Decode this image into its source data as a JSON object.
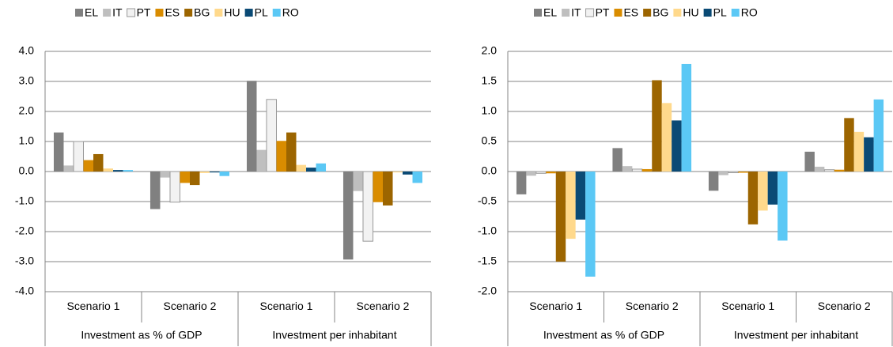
{
  "chart_data": [
    {
      "type": "bar",
      "categories": [
        "Scenario 1",
        "Scenario 2",
        "Scenario 1",
        "Scenario 2"
      ],
      "groups": [
        "Investment as % of GDP",
        "Investment per inhabitant"
      ],
      "ylim": [
        -4,
        4
      ],
      "yticks": [
        {
          "value": -4,
          "label": "-4.0"
        },
        {
          "value": -3,
          "label": "-3.0"
        },
        {
          "value": -2,
          "label": "-2.0"
        },
        {
          "value": -1,
          "label": "-1.0"
        },
        {
          "value": 0,
          "label": "0.0"
        },
        {
          "value": 1,
          "label": "1.0"
        },
        {
          "value": 2,
          "label": "2.0"
        },
        {
          "value": 3,
          "label": "3.0"
        },
        {
          "value": 4,
          "label": "4.0"
        }
      ],
      "grid": true,
      "legend": "top",
      "series": [
        {
          "name": "EL",
          "color": "#808080",
          "values": [
            1.3,
            -1.25,
            3.02,
            -2.93
          ]
        },
        {
          "name": "IT",
          "color": "#bfbfbf",
          "values": [
            0.2,
            -0.2,
            0.72,
            -0.65
          ]
        },
        {
          "name": "PT",
          "color": "#f2f2f2",
          "values": [
            1.0,
            -1.02,
            2.4,
            -2.32
          ]
        },
        {
          "name": "ES",
          "color": "#d98c00",
          "values": [
            0.38,
            -0.38,
            1.02,
            -1.02
          ]
        },
        {
          "name": "BG",
          "color": "#9c6500",
          "values": [
            0.58,
            -0.45,
            1.3,
            -1.13
          ]
        },
        {
          "name": "HU",
          "color": "#ffd98c",
          "values": [
            0.1,
            -0.05,
            0.22,
            -0.03
          ]
        },
        {
          "name": "PL",
          "color": "#0a4a75",
          "values": [
            0.05,
            -0.03,
            0.13,
            -0.1
          ]
        },
        {
          "name": "RO",
          "color": "#5bc8f5",
          "values": [
            0.05,
            -0.15,
            0.27,
            -0.38
          ]
        }
      ]
    },
    {
      "type": "bar",
      "categories": [
        "Scenario 1",
        "Scenario 2",
        "Scenario 1",
        "Scenario 2"
      ],
      "groups": [
        "Investment as % of GDP",
        "Investment per inhabitant"
      ],
      "ylim": [
        -2,
        2
      ],
      "yticks": [
        {
          "value": -2,
          "label": "-2.0"
        },
        -1.5,
        {
          "value": -1,
          "label": "-1.0"
        },
        -0.5,
        {
          "value": 0,
          "label": "0.0"
        },
        0.5,
        {
          "value": 1,
          "label": "1.0"
        },
        1.5,
        {
          "value": 2,
          "label": "2.0"
        }
      ],
      "grid": true,
      "legend": "top",
      "series": [
        {
          "name": "EL",
          "color": "#808080",
          "values": [
            -0.38,
            0.39,
            -0.32,
            0.33
          ]
        },
        {
          "name": "IT",
          "color": "#bfbfbf",
          "values": [
            -0.07,
            0.09,
            -0.06,
            0.08
          ]
        },
        {
          "name": "PT",
          "color": "#f2f2f2",
          "values": [
            -0.03,
            0.04,
            -0.02,
            0.03
          ]
        },
        {
          "name": "ES",
          "color": "#d98c00",
          "values": [
            -0.03,
            0.04,
            -0.02,
            0.03
          ]
        },
        {
          "name": "BG",
          "color": "#9c6500",
          "values": [
            -1.5,
            1.52,
            -0.88,
            0.89
          ]
        },
        {
          "name": "HU",
          "color": "#ffd98c",
          "values": [
            -1.12,
            1.14,
            -0.65,
            0.66
          ]
        },
        {
          "name": "PL",
          "color": "#0a4a75",
          "values": [
            -0.8,
            0.85,
            -0.55,
            0.57
          ]
        },
        {
          "name": "RO",
          "color": "#5bc8f5",
          "values": [
            -1.75,
            1.79,
            -1.15,
            1.2
          ]
        }
      ]
    }
  ]
}
